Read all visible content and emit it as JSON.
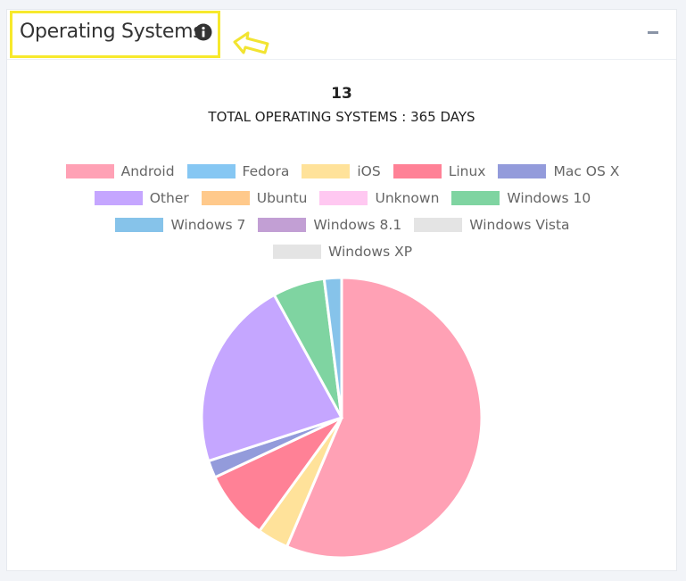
{
  "header": {
    "title": "Operating Systems"
  },
  "chart_data": {
    "type": "pie",
    "title": "13",
    "subtitle": "TOTAL OPERATING SYSTEMS : 365 DAYS",
    "categories": [
      "Android",
      "Fedora",
      "iOS",
      "Linux",
      "Mac OS X",
      "Other",
      "Ubuntu",
      "Unknown",
      "Windows 10",
      "Windows 7",
      "Windows 8.1",
      "Windows Vista",
      "Windows XP"
    ],
    "values": [
      56.4,
      0,
      3.6,
      8,
      2,
      22,
      0,
      0,
      6,
      2,
      0,
      0,
      0
    ],
    "colors": [
      "#ffa1b5",
      "#86c7f3",
      "#ffe29a",
      "#ff8196",
      "#939bdb",
      "#c5a6ff",
      "#ffc98b",
      "#ffc8f1",
      "#7fd4a1",
      "#86c3ea",
      "#c29fd4",
      "#e4e4e4",
      "#e4e4e4"
    ]
  }
}
